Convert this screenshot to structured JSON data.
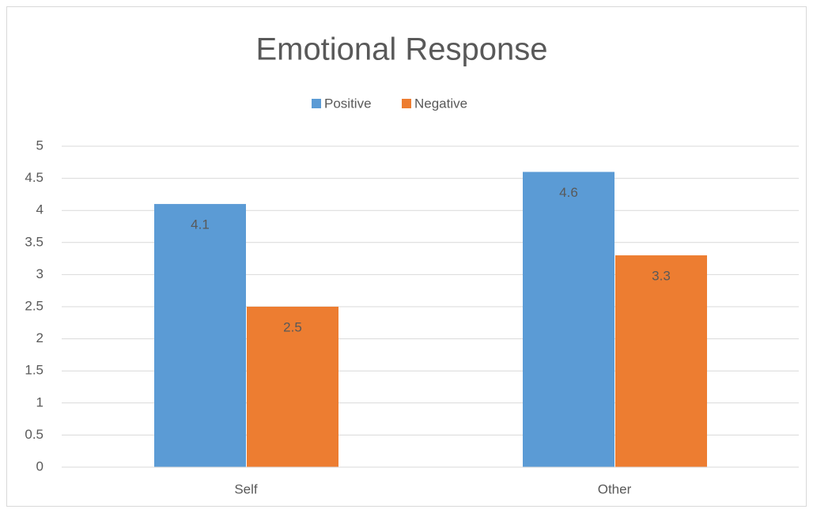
{
  "chart_data": {
    "type": "bar",
    "title": "Emotional Response",
    "categories": [
      "Self",
      "Other"
    ],
    "series": [
      {
        "name": "Positive",
        "color": "#5b9bd5",
        "values": [
          4.1,
          4.6
        ]
      },
      {
        "name": "Negative",
        "color": "#ed7d31",
        "values": [
          2.5,
          3.3
        ]
      }
    ],
    "ylim": [
      0,
      5
    ],
    "yticks": [
      0,
      0.5,
      1,
      1.5,
      2,
      2.5,
      3,
      3.5,
      4,
      4.5,
      5
    ],
    "grid": true,
    "legend": "top"
  }
}
